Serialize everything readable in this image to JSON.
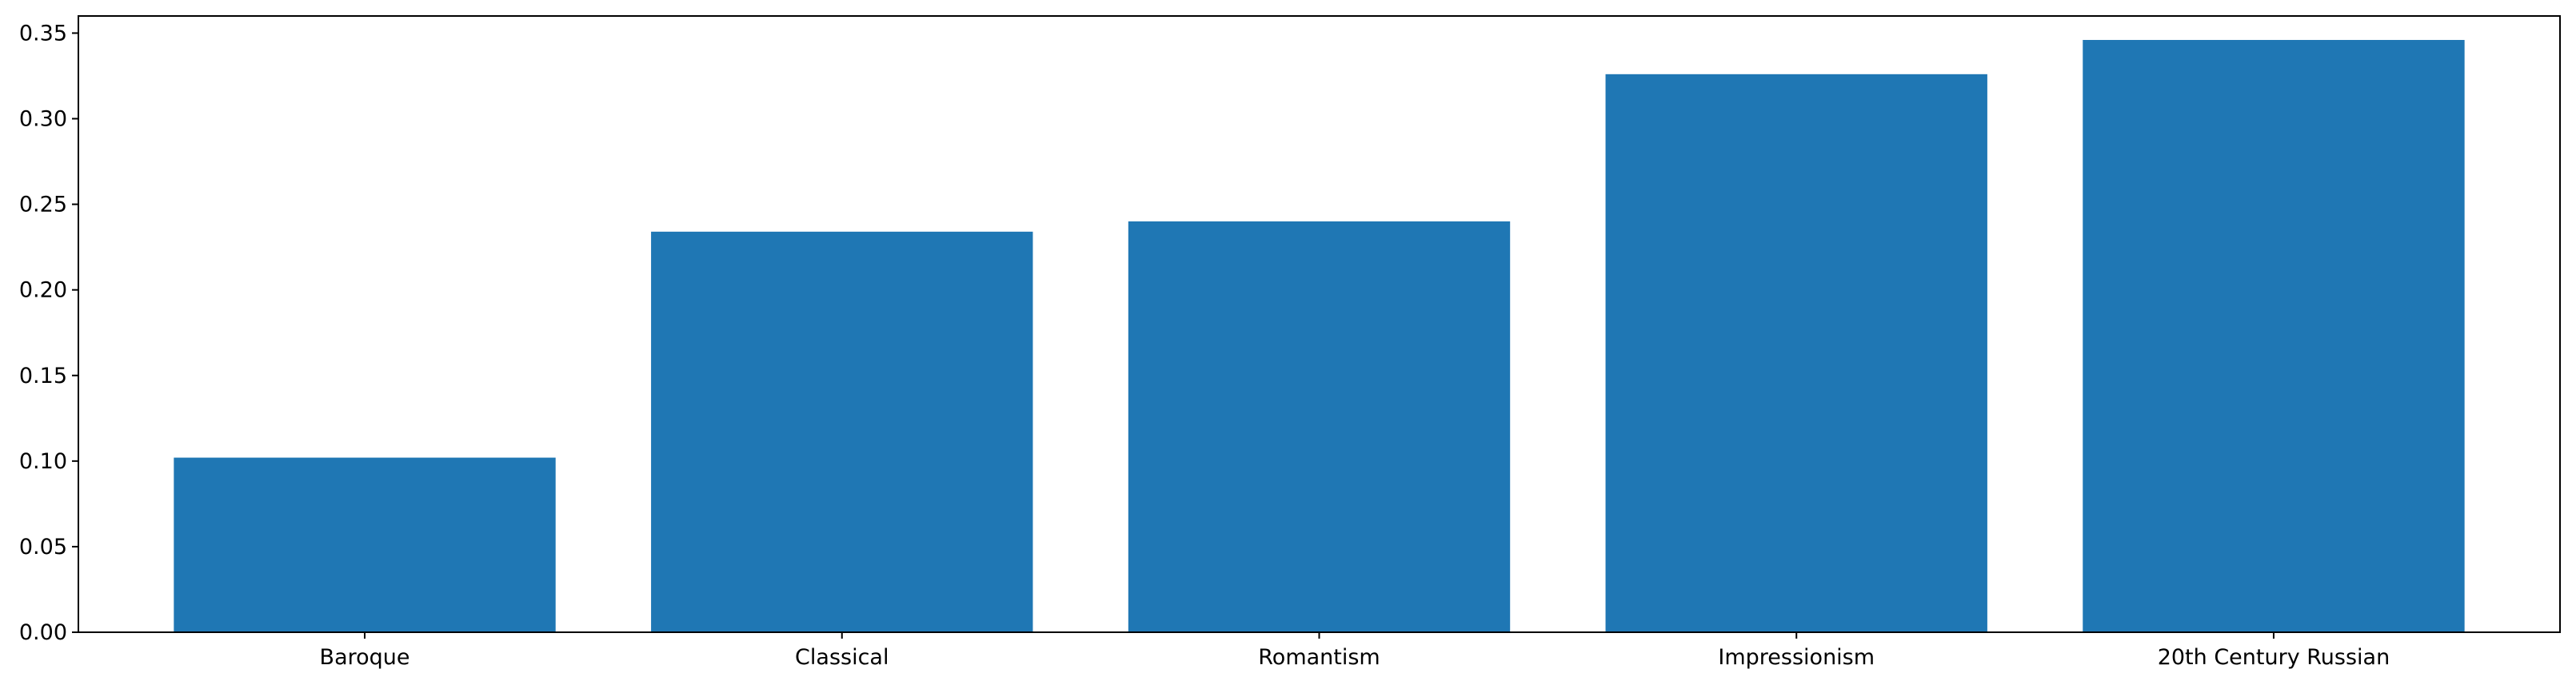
{
  "chart_data": {
    "type": "bar",
    "title": "",
    "xlabel": "",
    "ylabel": "",
    "categories": [
      "Baroque",
      "Classical",
      "Romantism",
      "Impressionism",
      "20th Century Russian"
    ],
    "values": [
      0.102,
      0.234,
      0.24,
      0.326,
      0.346
    ],
    "ylim": [
      0,
      0.36
    ],
    "yticks": [
      0.0,
      0.05,
      0.1,
      0.15,
      0.2,
      0.25,
      0.3,
      0.35
    ],
    "ytick_labels": [
      "0.00",
      "0.05",
      "0.10",
      "0.15",
      "0.20",
      "0.25",
      "0.30",
      "0.35"
    ],
    "bar_color": "#1f77b4",
    "grid": false,
    "legend": "none"
  }
}
